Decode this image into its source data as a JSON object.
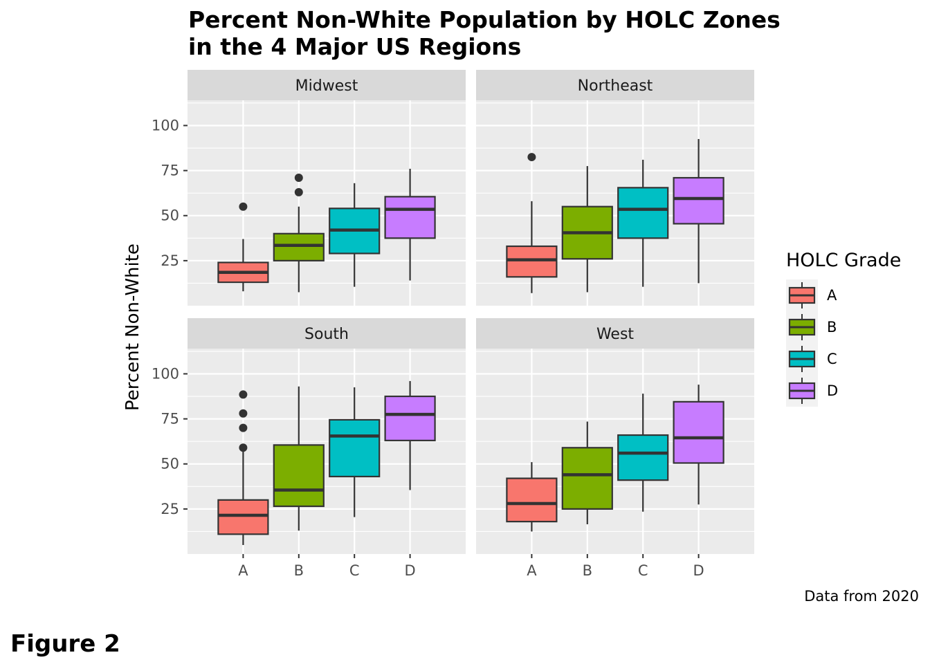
{
  "chart_data": {
    "type": "boxplot",
    "title_lines": [
      "Percent Non-White Population by HOLC Zones",
      "in the 4 Major US Regions"
    ],
    "ylabel": "Percent Non-White",
    "xlabel": "",
    "categories": [
      "A",
      "B",
      "C",
      "D"
    ],
    "ylim": [
      0,
      114
    ],
    "y_ticks": [
      25,
      50,
      75,
      100
    ],
    "grid": true,
    "legend": {
      "title": "HOLC Grade",
      "position": "right",
      "items": [
        {
          "label": "A",
          "color": "#F8766D"
        },
        {
          "label": "B",
          "color": "#7CAE00"
        },
        {
          "label": "C",
          "color": "#00BFC4"
        },
        {
          "label": "D",
          "color": "#C77CFF"
        }
      ]
    },
    "panels": [
      {
        "region": "Midwest",
        "boxes": [
          {
            "grade": "A",
            "whisker_low": 8,
            "q1": 13,
            "median": 18.5,
            "q3": 24,
            "whisker_high": 37,
            "outliers": [
              55
            ]
          },
          {
            "grade": "B",
            "whisker_low": 7.5,
            "q1": 25,
            "median": 33.5,
            "q3": 40,
            "whisker_high": 55,
            "outliers": [
              63,
              71
            ]
          },
          {
            "grade": "C",
            "whisker_low": 10.5,
            "q1": 29,
            "median": 42,
            "q3": 54,
            "whisker_high": 68,
            "outliers": []
          },
          {
            "grade": "D",
            "whisker_low": 14,
            "q1": 37.5,
            "median": 53.5,
            "q3": 60.5,
            "whisker_high": 76,
            "outliers": []
          }
        ]
      },
      {
        "region": "Northeast",
        "boxes": [
          {
            "grade": "A",
            "whisker_low": 7,
            "q1": 16,
            "median": 25.5,
            "q3": 33,
            "whisker_high": 58,
            "outliers": [
              82.5
            ]
          },
          {
            "grade": "B",
            "whisker_low": 7.5,
            "q1": 26,
            "median": 40.5,
            "q3": 55,
            "whisker_high": 77.5,
            "outliers": []
          },
          {
            "grade": "C",
            "whisker_low": 10.5,
            "q1": 37.5,
            "median": 53.5,
            "q3": 65.5,
            "whisker_high": 81,
            "outliers": []
          },
          {
            "grade": "D",
            "whisker_low": 12.5,
            "q1": 45.5,
            "median": 59.5,
            "q3": 71,
            "whisker_high": 92.5,
            "outliers": []
          }
        ]
      },
      {
        "region": "South",
        "boxes": [
          {
            "grade": "A",
            "whisker_low": 5,
            "q1": 11,
            "median": 21.5,
            "q3": 30,
            "whisker_high": 58,
            "outliers": [
              59,
              70,
              78,
              88.5
            ]
          },
          {
            "grade": "B",
            "whisker_low": 13,
            "q1": 26.5,
            "median": 35.5,
            "q3": 60.5,
            "whisker_high": 93,
            "outliers": []
          },
          {
            "grade": "C",
            "whisker_low": 20.5,
            "q1": 43,
            "median": 65.5,
            "q3": 74.5,
            "whisker_high": 92.5,
            "outliers": []
          },
          {
            "grade": "D",
            "whisker_low": 35.5,
            "q1": 63,
            "median": 77.5,
            "q3": 87.5,
            "whisker_high": 96,
            "outliers": []
          }
        ]
      },
      {
        "region": "West",
        "boxes": [
          {
            "grade": "A",
            "whisker_low": 12.5,
            "q1": 18,
            "median": 28,
            "q3": 42,
            "whisker_high": 51,
            "outliers": []
          },
          {
            "grade": "B",
            "whisker_low": 16.5,
            "q1": 25,
            "median": 44,
            "q3": 59,
            "whisker_high": 73.5,
            "outliers": []
          },
          {
            "grade": "C",
            "whisker_low": 23.5,
            "q1": 41,
            "median": 56,
            "q3": 66,
            "whisker_high": 89,
            "outliers": []
          },
          {
            "grade": "D",
            "whisker_low": 27.5,
            "q1": 50.5,
            "median": 64.5,
            "q3": 84.5,
            "whisker_high": 94,
            "outliers": []
          }
        ]
      }
    ],
    "caption": "Data from 2020"
  },
  "figure_label": "Figure 2"
}
